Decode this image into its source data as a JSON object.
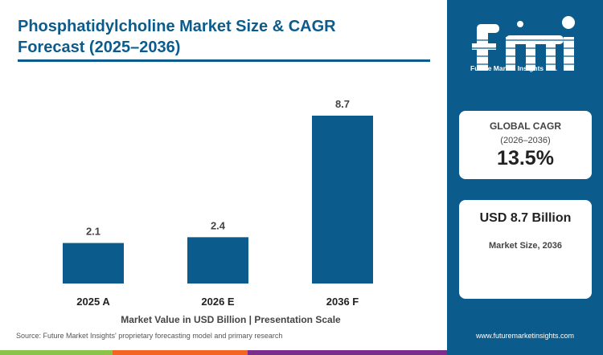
{
  "header": {
    "title_line1": "Phosphatidylcholine Market Size & CAGR",
    "title_line2": "Forecast (2025–2036)"
  },
  "chart_data": {
    "type": "bar",
    "categories": [
      "2025 A",
      "2026 E",
      "2036 F"
    ],
    "values": [
      2.1,
      2.4,
      8.7
    ],
    "value_labels": [
      "2.1",
      "2.4",
      "8.7"
    ],
    "xlabel": "Market Value in USD Billion | Presentation Scale",
    "ylabel": "",
    "ylim": [
      0,
      8.7
    ],
    "grid": false,
    "legend": "none",
    "bar_color": "#0b5c8c"
  },
  "footer": {
    "source": "Source: Future Market Insights' proprietary forecasting model and primary research",
    "website": "www.futuremarketinsights.com"
  },
  "logo": {
    "text": "fmi",
    "subtitle": "Future Market Insights Inc."
  },
  "cagr_card": {
    "label": "GLOBAL CAGR",
    "period": "(2026–2036)",
    "value": "13.5%"
  },
  "size_card": {
    "value": "USD 8.7 Billion",
    "label": "Market Size, 2036"
  },
  "colors": {
    "brand_blue": "#0b5c8c",
    "stripe_green": "#8bc34a",
    "stripe_orange": "#f26522",
    "stripe_purple": "#7b2d8e"
  }
}
